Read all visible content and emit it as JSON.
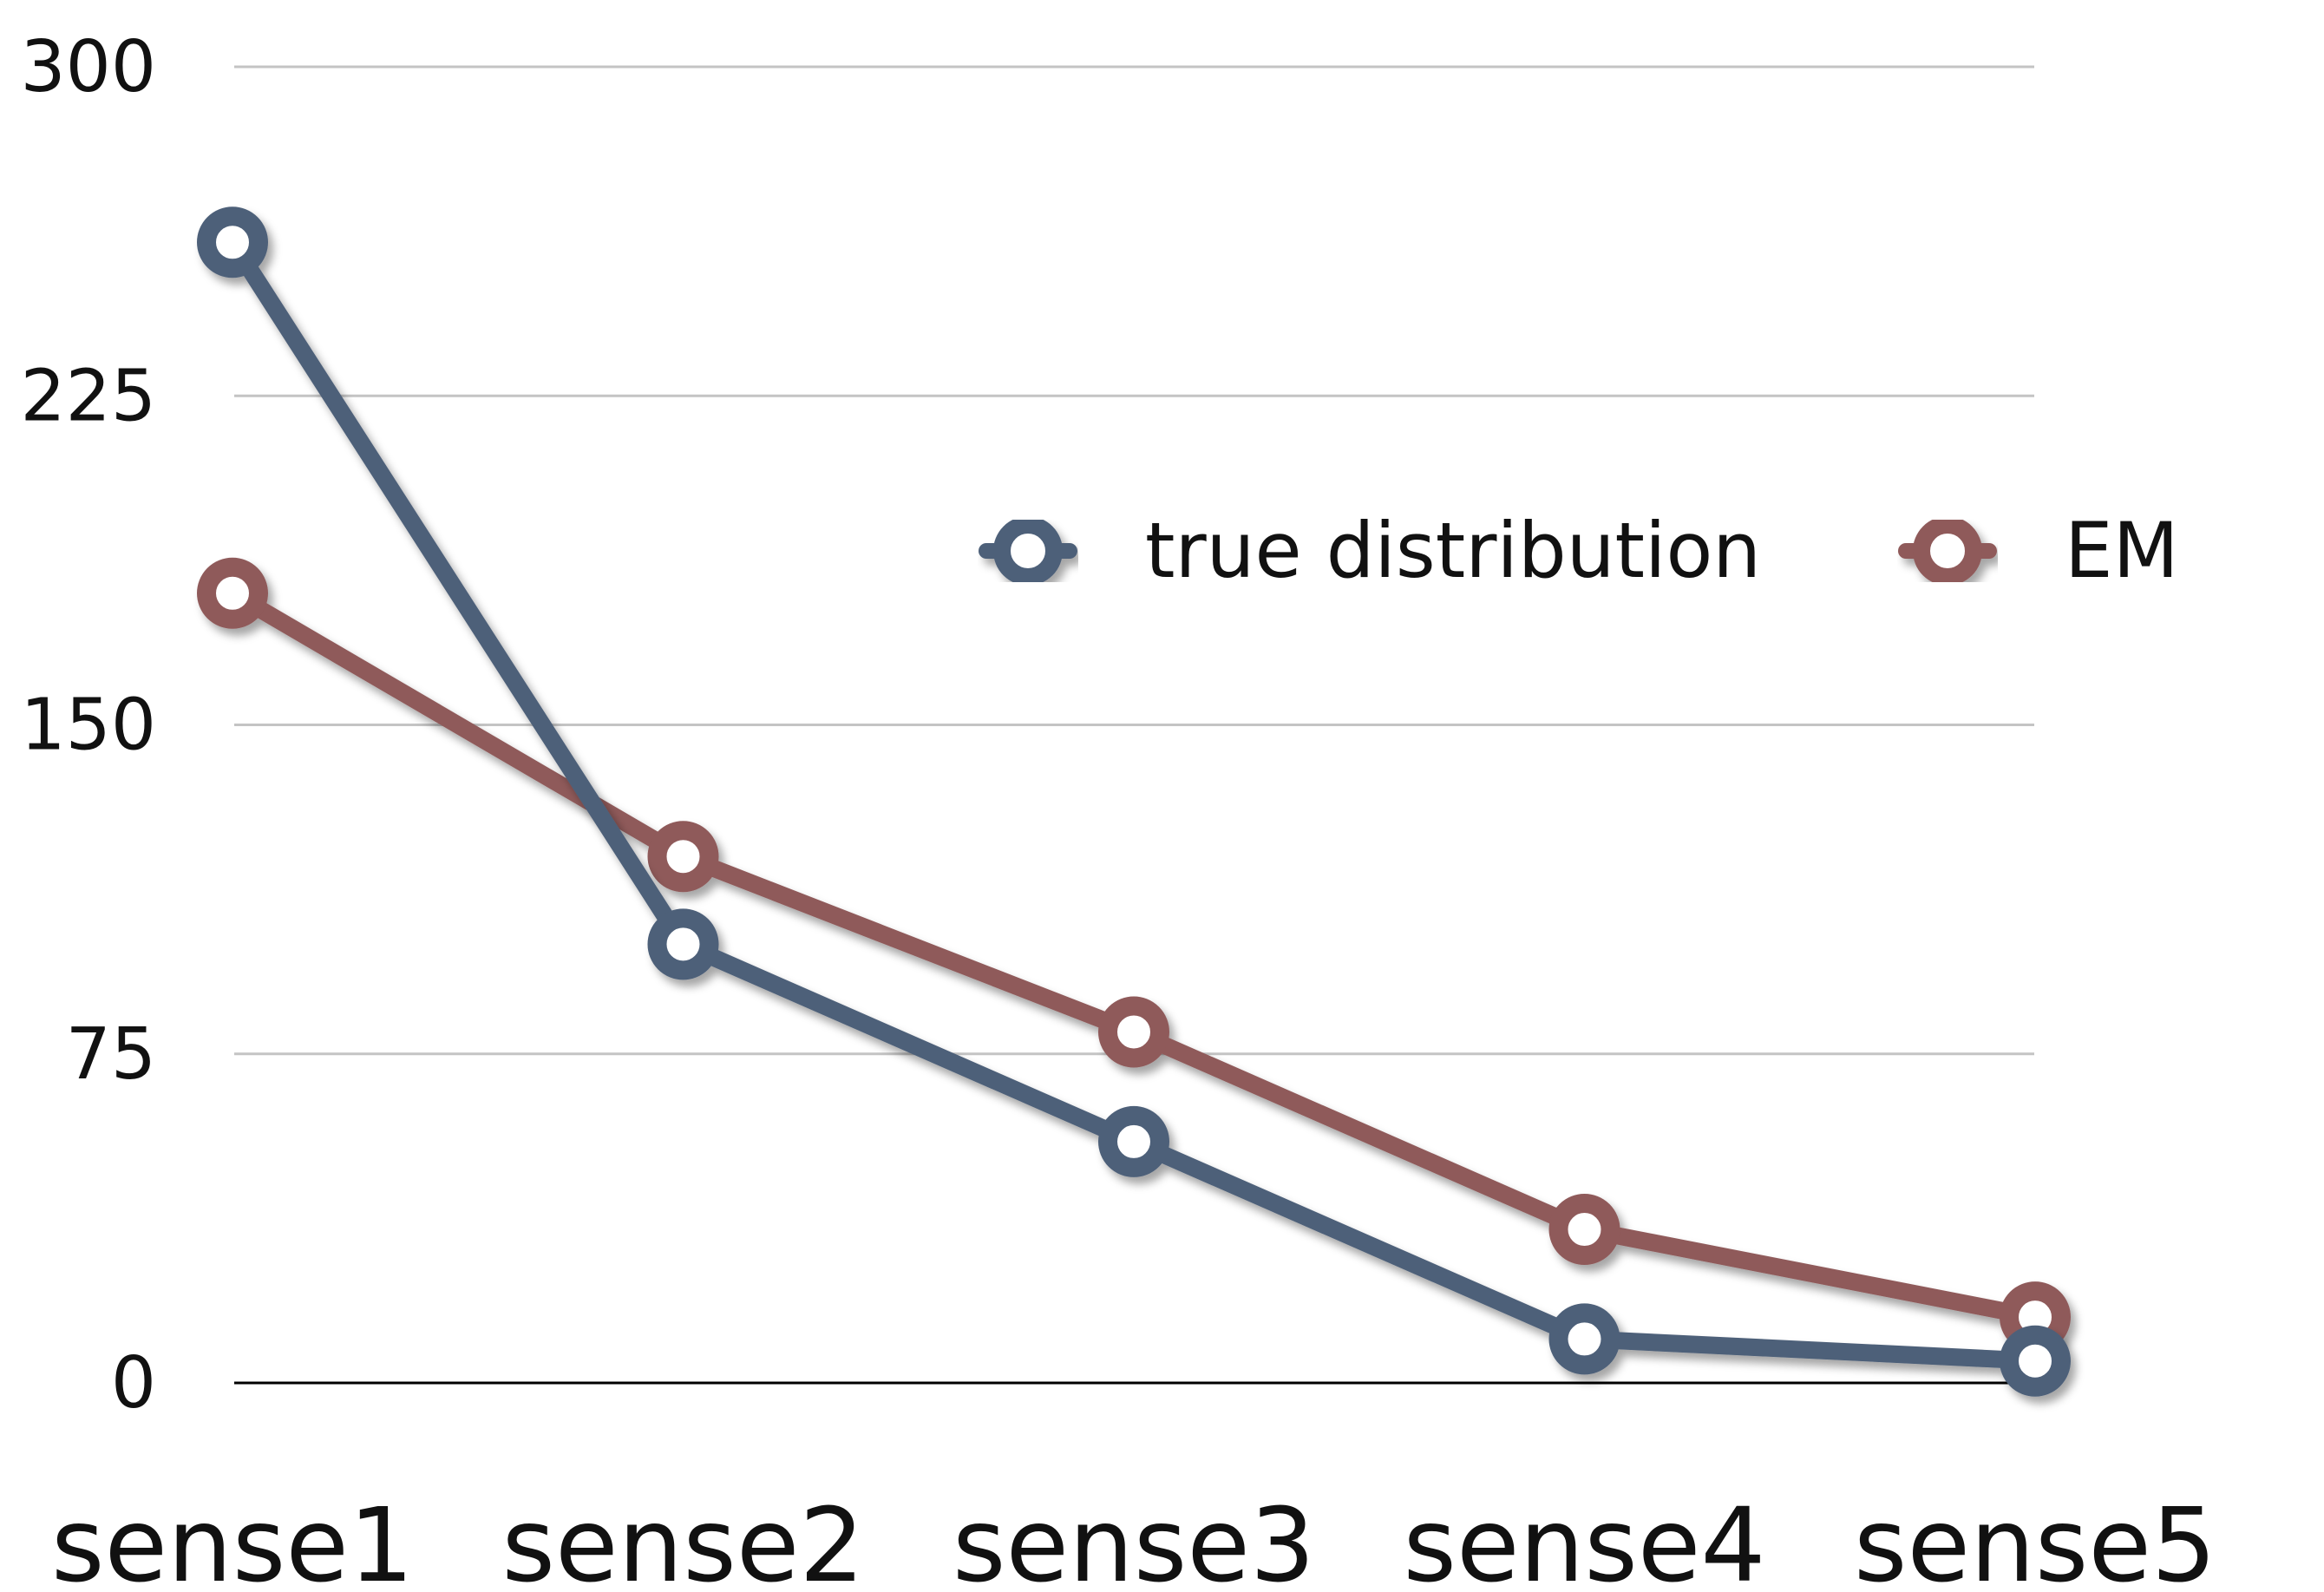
{
  "chart_data": {
    "type": "line",
    "title": "",
    "xlabel": "",
    "ylabel": "",
    "categories": [
      "sense1",
      "sense2",
      "sense3",
      "sense4",
      "sense5"
    ],
    "ylim": [
      0,
      300
    ],
    "yticks": [
      0,
      75,
      150,
      225,
      300
    ],
    "grid": true,
    "legend_position": "top-right",
    "series": [
      {
        "name": "true distribution",
        "color": "#4e6079",
        "values": [
          260,
          100,
          55,
          10,
          5
        ]
      },
      {
        "name": "EM",
        "color": "#8f5a5a",
        "values": [
          180,
          120,
          80,
          35,
          15
        ]
      }
    ]
  }
}
